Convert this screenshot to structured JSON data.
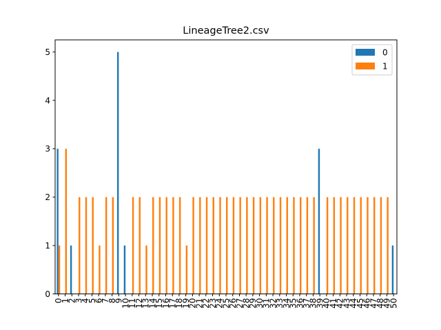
{
  "chart_data": {
    "type": "bar",
    "title": "LineageTree2.csv",
    "xlabel": "",
    "ylabel": "",
    "ylim": [
      0,
      5.25
    ],
    "yticks": [
      0,
      1,
      2,
      3,
      4,
      5
    ],
    "grid": false,
    "legend_position": "top-right",
    "categories": [
      "0",
      "1",
      "2",
      "3",
      "4",
      "5",
      "6",
      "7",
      "8",
      "9",
      "10",
      "11",
      "12",
      "13",
      "14",
      "15",
      "16",
      "17",
      "18",
      "19",
      "20",
      "21",
      "22",
      "23",
      "24",
      "25",
      "26",
      "27",
      "28",
      "29",
      "30",
      "31",
      "32",
      "33",
      "34",
      "35",
      "36",
      "37",
      "38",
      "39",
      "40",
      "41",
      "42",
      "43",
      "44",
      "45",
      "46",
      "47",
      "48",
      "49",
      "50"
    ],
    "series": [
      {
        "name": "0",
        "color": "#1f77b4",
        "values": [
          3,
          0,
          1,
          0,
          0,
          0,
          0,
          0,
          0,
          5,
          1,
          0,
          0,
          0,
          0,
          0,
          0,
          0,
          0,
          0,
          0,
          0,
          0,
          0,
          0,
          0,
          0,
          0,
          0,
          0,
          0,
          0,
          0,
          0,
          0,
          0,
          0,
          0,
          0,
          3,
          0,
          0,
          0,
          0,
          0,
          0,
          0,
          0,
          0,
          0,
          1
        ]
      },
      {
        "name": "1",
        "color": "#ff7f0e",
        "values": [
          1,
          3,
          0,
          2,
          2,
          2,
          1,
          2,
          2,
          0,
          0,
          2,
          2,
          1,
          2,
          2,
          2,
          2,
          2,
          1,
          2,
          2,
          2,
          2,
          2,
          2,
          2,
          2,
          2,
          2,
          2,
          2,
          2,
          2,
          2,
          2,
          2,
          2,
          2,
          0,
          2,
          2,
          2,
          2,
          2,
          2,
          2,
          2,
          2,
          2,
          0
        ]
      }
    ]
  }
}
